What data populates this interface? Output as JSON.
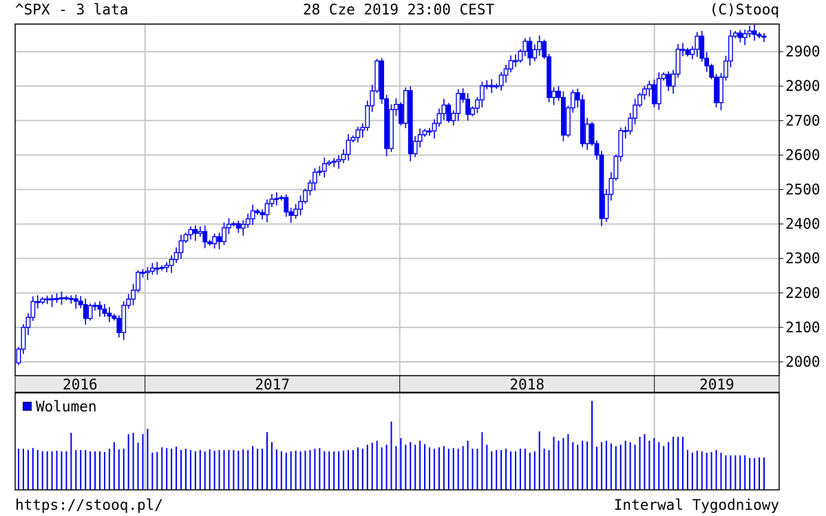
{
  "header": {
    "title": "^SPX - 3 lata",
    "date": "28 Cze 2019 23:00 CEST",
    "copyright": "(C)Stooq"
  },
  "footer": {
    "url": "https://stooq.pl/",
    "interval": "Interwal Tygodniowy"
  },
  "colors": {
    "candle": "#0000ee",
    "grid": "#c8c8c8",
    "axis_band": "#e8e8e8"
  },
  "chart_data": [
    {
      "type": "candlestick",
      "title": "^SPX - 3 lata",
      "ylim": [
        1960,
        2980
      ],
      "y_ticks": [
        2000,
        2100,
        2200,
        2300,
        2400,
        2500,
        2600,
        2700,
        2800,
        2900
      ],
      "y_tick_labels": [
        "2000",
        "2100",
        "2200",
        "2300",
        "2400",
        "2500",
        "2600",
        "2700",
        "2800",
        "2900"
      ],
      "x_ticks": [
        "2016",
        "2017",
        "2018",
        "2019"
      ],
      "interval": "weekly",
      "weeks": 157,
      "x_start_year": 2016.49,
      "x_end_year": 2019.49,
      "series": [
        {
          "close": [
            2037,
            2100,
            2129,
            2175,
            2173,
            2182,
            2183,
            2181,
            2184,
            2186,
            2184,
            2183,
            2176,
            2166,
            2126,
            2163,
            2164,
            2153,
            2141,
            2133,
            2126,
            2085,
            2164,
            2182,
            2208,
            2260,
            2259,
            2263,
            2272,
            2271,
            2274,
            2280,
            2297,
            2317,
            2351,
            2369,
            2384,
            2373,
            2378,
            2348,
            2343,
            2363,
            2349,
            2389,
            2399,
            2401,
            2388,
            2399,
            2415,
            2438,
            2433,
            2427,
            2459,
            2472,
            2474,
            2477,
            2435,
            2425,
            2443,
            2465,
            2497,
            2519,
            2550,
            2553,
            2575,
            2579,
            2582,
            2587,
            2602,
            2643,
            2651,
            2673,
            2680,
            2743,
            2786,
            2873,
            2763,
            2619,
            2732,
            2747,
            2692,
            2787,
            2604,
            2640,
            2659,
            2670,
            2670,
            2692,
            2720,
            2745,
            2700,
            2721,
            2779,
            2762,
            2718,
            2736,
            2760,
            2801,
            2802,
            2798,
            2801,
            2832,
            2850,
            2874,
            2874,
            2901,
            2930,
            2882,
            2906,
            2929,
            2885,
            2767,
            2785,
            2767,
            2658,
            2737,
            2781,
            2760,
            2633,
            2690,
            2633,
            2600,
            2416,
            2486,
            2532,
            2596,
            2671,
            2670,
            2707,
            2745,
            2775,
            2792,
            2804,
            2749,
            2822,
            2834,
            2800,
            2835,
            2907,
            2905,
            2892,
            2907,
            2945,
            2881,
            2859,
            2826,
            2752,
            2826,
            2873,
            2945,
            2954,
            2941,
            2952,
            2960,
            2950,
            2945,
            2942
          ],
          "volume": [
            62,
            62,
            60,
            63,
            60,
            58,
            58,
            58,
            59,
            58,
            58,
            86,
            60,
            60,
            60,
            58,
            58,
            58,
            57,
            62,
            72,
            61,
            62,
            84,
            86,
            71,
            84,
            92,
            56,
            57,
            64,
            63,
            62,
            65,
            60,
            62,
            60,
            58,
            60,
            58,
            61,
            59,
            60,
            60,
            60,
            60,
            59,
            61,
            60,
            66,
            62,
            62,
            87,
            72,
            61,
            58,
            56,
            58,
            59,
            58,
            59,
            60,
            62,
            63,
            58,
            58,
            58,
            58,
            59,
            60,
            60,
            64,
            62,
            68,
            71,
            74,
            64,
            68,
            103,
            66,
            78,
            68,
            72,
            68,
            74,
            69,
            64,
            62,
            64,
            66,
            62,
            63,
            62,
            66,
            74,
            62,
            62,
            87,
            68,
            58,
            60,
            60,
            62,
            58,
            58,
            62,
            62,
            56,
            58,
            88,
            62,
            60,
            80,
            74,
            78,
            84,
            72,
            68,
            74,
            73,
            134,
            65,
            72,
            74,
            70,
            66,
            68,
            74,
            72,
            68,
            80,
            84,
            74,
            78,
            72,
            66,
            72,
            80,
            80,
            80,
            60,
            56,
            59,
            58,
            56,
            57,
            60,
            56,
            52,
            52,
            52,
            52,
            52,
            48,
            48,
            49,
            49
          ],
          "volume_note": "relative"
        }
      ]
    },
    {
      "type": "bar",
      "legend": [
        "Wolumen"
      ],
      "legend_position": "top-left"
    }
  ]
}
